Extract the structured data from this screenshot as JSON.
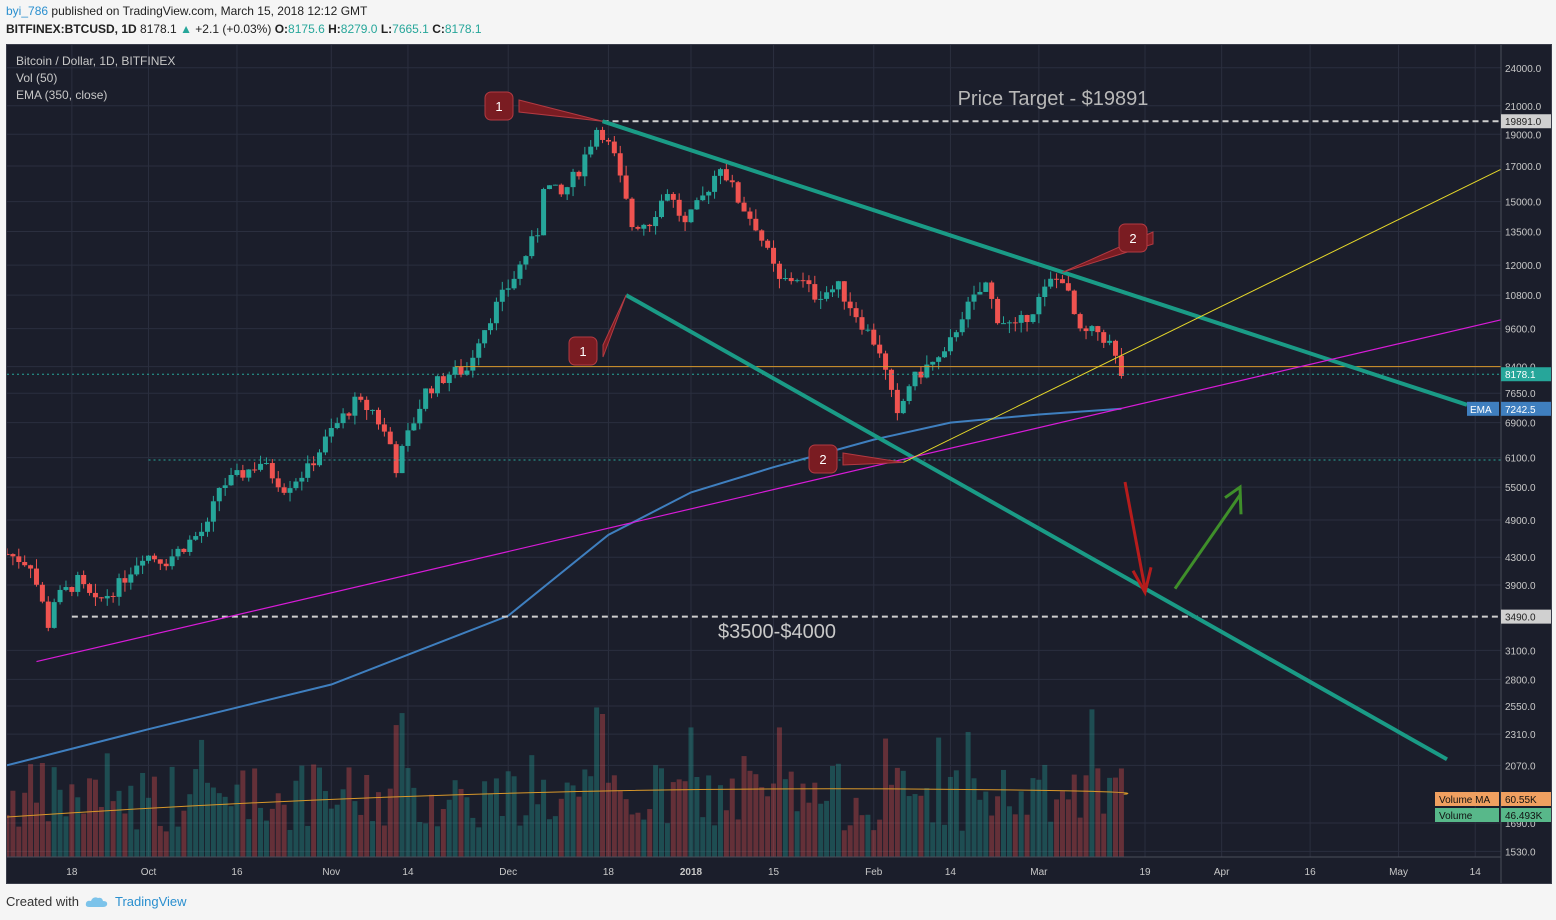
{
  "header": {
    "user": "byi_786",
    "published": "published on TradingView.com, March 15, 2018 12:12 GMT",
    "symbol": "BITFINEX:BTCUSD, 1D",
    "last": "8178.1",
    "change": "+2.1 (+0.03%)",
    "o_label": "O:",
    "o": "8175.6",
    "h_label": "H:",
    "h": "8279.0",
    "l_label": "L:",
    "l": "7665.1",
    "c_label": "C:",
    "c": "8178.1"
  },
  "legend": {
    "title": "Bitcoin / Dollar, 1D, BITFINEX",
    "vol": "Vol (50)",
    "ema": "EMA (350, close)"
  },
  "annotations": {
    "price_target": "Price Target - $19891",
    "range_label": "$3500-$4000",
    "callout_1": "1",
    "callout_2": "2"
  },
  "price_tags": {
    "target": "19891.0",
    "last": "8178.1",
    "ema_label": "EMA",
    "ema": "7242.5",
    "support": "3490.0",
    "volume_ma_label": "Volume MA",
    "volume_ma": "60.55K",
    "volume_label": "Volume",
    "volume": "46.493K"
  },
  "footer": {
    "created_with": "Created with",
    "brand": "TradingView"
  },
  "colors": {
    "background": "#1b1e2b",
    "up": "#26a69a",
    "down": "#ef5350",
    "teal_line": "#1a9b86",
    "magenta_line": "#d81bd8",
    "yellow_line": "#e6d82a",
    "ema": "#3f7fbf",
    "orange_line": "#d9982a",
    "callout": "#7a1c22"
  },
  "chart_data": {
    "type": "candlestick",
    "title": "Bitcoin / Dollar, 1D, BITFINEX",
    "y_scale": "log",
    "ylim": [
      1500,
      26000
    ],
    "y_ticks": [
      24000,
      21000,
      19000,
      17000,
      15000,
      13500,
      12000,
      10800,
      9600,
      8400,
      7650,
      6900,
      6100,
      5500,
      4900,
      4300,
      3900,
      3100,
      2800,
      2550,
      2310,
      2070,
      1690,
      1530
    ],
    "y_tick_labels": [
      "24000.0",
      "21000.0",
      "19000.0",
      "17000.0",
      "15000.0",
      "13500.0",
      "12000.0",
      "10800.0",
      "9600.0",
      "8400.0",
      "7650.0",
      "6900.0",
      "6100.0",
      "5500.0",
      "4900.0",
      "4300.0",
      "3900.0",
      "3100.0",
      "2800.0",
      "2550.0",
      "2310.0",
      "2070.0",
      "1690.0",
      "1530.0"
    ],
    "x_tick_labels": [
      "18",
      "Oct",
      "16",
      "Nov",
      "14",
      "Dec",
      "18",
      "2018",
      "15",
      "Feb",
      "14",
      "Mar",
      "19",
      "Apr",
      "16",
      "May",
      "14"
    ],
    "x_tick_dates": [
      "2017-09-18",
      "2017-10-01",
      "2017-10-16",
      "2017-11-01",
      "2017-11-14",
      "2017-12-01",
      "2017-12-18",
      "2018-01-01",
      "2018-01-15",
      "2018-02-01",
      "2018-02-14",
      "2018-03-01",
      "2018-03-19",
      "2018-04-01",
      "2018-04-16",
      "2018-05-01",
      "2018-05-14"
    ],
    "x_range": [
      "2017-09-07",
      "2018-05-16"
    ],
    "closes": [
      {
        "date": "2017-09-07",
        "close": 4350
      },
      {
        "date": "2017-09-11",
        "close": 4200
      },
      {
        "date": "2017-09-14",
        "close": 3400
      },
      {
        "date": "2017-09-15",
        "close": 3700
      },
      {
        "date": "2017-09-19",
        "close": 3950
      },
      {
        "date": "2017-09-22",
        "close": 3650
      },
      {
        "date": "2017-09-26",
        "close": 3900
      },
      {
        "date": "2017-09-30",
        "close": 4350
      },
      {
        "date": "2017-10-04",
        "close": 4250
      },
      {
        "date": "2017-10-08",
        "close": 4550
      },
      {
        "date": "2017-10-11",
        "close": 4780
      },
      {
        "date": "2017-10-13",
        "close": 5500
      },
      {
        "date": "2017-10-16",
        "close": 5700
      },
      {
        "date": "2017-10-20",
        "close": 6000
      },
      {
        "date": "2017-10-24",
        "close": 5500
      },
      {
        "date": "2017-10-28",
        "close": 5850
      },
      {
        "date": "2017-11-01",
        "close": 6700
      },
      {
        "date": "2017-11-05",
        "close": 7400
      },
      {
        "date": "2017-11-08",
        "close": 7200
      },
      {
        "date": "2017-11-11",
        "close": 6400
      },
      {
        "date": "2017-11-12",
        "close": 5900
      },
      {
        "date": "2017-11-14",
        "close": 6600
      },
      {
        "date": "2017-11-17",
        "close": 7700
      },
      {
        "date": "2017-11-21",
        "close": 8200
      },
      {
        "date": "2017-11-24",
        "close": 8300
      },
      {
        "date": "2017-11-26",
        "close": 9300
      },
      {
        "date": "2017-11-29",
        "close": 10400
      },
      {
        "date": "2017-12-02",
        "close": 11500
      },
      {
        "date": "2017-12-06",
        "close": 13500
      },
      {
        "date": "2017-12-07",
        "close": 16000
      },
      {
        "date": "2017-12-10",
        "close": 15300
      },
      {
        "date": "2017-12-13",
        "close": 16800
      },
      {
        "date": "2017-12-16",
        "close": 19400
      },
      {
        "date": "2017-12-17",
        "close": 19100
      },
      {
        "date": "2017-12-19",
        "close": 17500
      },
      {
        "date": "2017-12-22",
        "close": 13800
      },
      {
        "date": "2017-12-25",
        "close": 14000
      },
      {
        "date": "2017-12-28",
        "close": 15600
      },
      {
        "date": "2017-12-31",
        "close": 13800
      },
      {
        "date": "2018-01-03",
        "close": 15200
      },
      {
        "date": "2018-01-06",
        "close": 17100
      },
      {
        "date": "2018-01-09",
        "close": 15100
      },
      {
        "date": "2018-01-12",
        "close": 13800
      },
      {
        "date": "2018-01-16",
        "close": 11300
      },
      {
        "date": "2018-01-19",
        "close": 11500
      },
      {
        "date": "2018-01-22",
        "close": 10800
      },
      {
        "date": "2018-01-26",
        "close": 11100
      },
      {
        "date": "2018-01-29",
        "close": 10100
      },
      {
        "date": "2018-02-02",
        "close": 8900
      },
      {
        "date": "2018-02-05",
        "close": 7000
      },
      {
        "date": "2018-02-07",
        "close": 7900
      },
      {
        "date": "2018-02-10",
        "close": 8400
      },
      {
        "date": "2018-02-13",
        "close": 8700
      },
      {
        "date": "2018-02-16",
        "close": 10100
      },
      {
        "date": "2018-02-20",
        "close": 11200
      },
      {
        "date": "2018-02-22",
        "close": 10000
      },
      {
        "date": "2018-02-25",
        "close": 9600
      },
      {
        "date": "2018-02-28",
        "close": 10300
      },
      {
        "date": "2018-03-03",
        "close": 11300
      },
      {
        "date": "2018-03-05",
        "close": 11500
      },
      {
        "date": "2018-03-08",
        "close": 9400
      },
      {
        "date": "2018-03-11",
        "close": 9500
      },
      {
        "date": "2018-03-13",
        "close": 9100
      },
      {
        "date": "2018-03-15",
        "close": 8178
      }
    ],
    "ema_350": [
      {
        "date": "2017-09-07",
        "value": 2070
      },
      {
        "date": "2017-10-01",
        "value": 2350
      },
      {
        "date": "2017-11-01",
        "value": 2750
      },
      {
        "date": "2017-12-01",
        "value": 3500
      },
      {
        "date": "2017-12-18",
        "value": 4650
      },
      {
        "date": "2018-01-01",
        "value": 5400
      },
      {
        "date": "2018-01-15",
        "value": 5900
      },
      {
        "date": "2018-02-01",
        "value": 6500
      },
      {
        "date": "2018-02-14",
        "value": 6900
      },
      {
        "date": "2018-03-01",
        "value": 7100
      },
      {
        "date": "2018-03-15",
        "value": 7242.5
      }
    ],
    "horizontal_levels": [
      19891,
      8400,
      6050,
      3490
    ],
    "last_price": 8178.1,
    "ema_last": 7242.5
  }
}
